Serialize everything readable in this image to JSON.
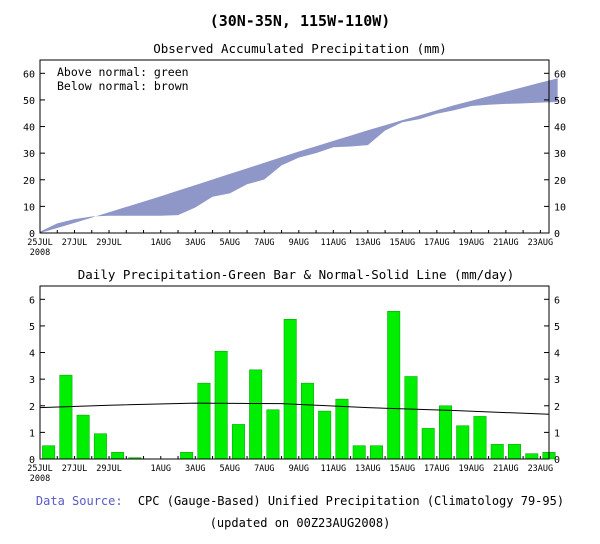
{
  "header": {
    "title": "(30N-35N, 115W-110W)"
  },
  "footer": {
    "source_label": "Data Source:",
    "source_text": "CPC (Gauge-Based) Unified Precipitation (Climatology 79-95)",
    "updated": "(updated on 00Z23AUG2008)"
  },
  "colors": {
    "accum_fill": "#8f97c9",
    "bar": "#00ee00",
    "bar_stroke": "#009900",
    "normal_line": "#000000",
    "source_label": "#5a5ac8"
  },
  "chart_data": [
    {
      "type": "area",
      "title": "Observed Accumulated Precipitation (mm)",
      "annotations": [
        "Above normal: green",
        "Below normal: brown"
      ],
      "x_labels": [
        "25JUL",
        "27JUL",
        "29JUL",
        "1AUG",
        "3AUG",
        "5AUG",
        "7AUG",
        "9AUG",
        "11AUG",
        "13AUG",
        "15AUG",
        "17AUG",
        "19AUG",
        "21AUG",
        "23AUG"
      ],
      "x_label_days": [
        0,
        2,
        4,
        7,
        9,
        11,
        13,
        15,
        17,
        19,
        21,
        23,
        25,
        27,
        29
      ],
      "year_label": "2008",
      "x_range": [
        0,
        29.5
      ],
      "ylim": [
        0,
        65
      ],
      "yticks": [
        0,
        10,
        20,
        30,
        40,
        50,
        60
      ],
      "legend": "top-left",
      "grid": false,
      "series": [
        {
          "name": "normal",
          "values": [
            0,
            1.9,
            3.8,
            5.8,
            7.8,
            9.8,
            11.8,
            13.8,
            15.9,
            18.0,
            20.1,
            22.2,
            24.3,
            26.4,
            28.5,
            30.6,
            32.6,
            34.6,
            36.6,
            38.6,
            40.5,
            42.4,
            44.2,
            46.1,
            48.0,
            49.7,
            51.4,
            53.1,
            54.8,
            56.5,
            58.1
          ]
        },
        {
          "name": "observed",
          "values": [
            0.5,
            3.6,
            5.2,
            6.2,
            6.5,
            6.5,
            6.5,
            6.5,
            6.7,
            9.6,
            13.6,
            14.9,
            18.3,
            20.1,
            25.4,
            28.3,
            30.0,
            32.2,
            32.5,
            33.0,
            38.5,
            41.6,
            42.8,
            44.8,
            46.1,
            47.7,
            48.2,
            48.5,
            48.7,
            49.0,
            49.2
          ]
        }
      ]
    },
    {
      "type": "bar",
      "title": "Daily Precipitation-Green Bar & Normal-Solid Line (mm/day)",
      "x_labels": [
        "25JUL",
        "27JUL",
        "29JUL",
        "1AUG",
        "3AUG",
        "5AUG",
        "7AUG",
        "9AUG",
        "11AUG",
        "13AUG",
        "15AUG",
        "17AUG",
        "19AUG",
        "21AUG",
        "23AUG"
      ],
      "x_label_days": [
        0,
        2,
        4,
        7,
        9,
        11,
        13,
        15,
        17,
        19,
        21,
        23,
        25,
        27,
        29
      ],
      "year_label": "2008",
      "x_range": [
        0,
        29.5
      ],
      "ylim": [
        0,
        6.5
      ],
      "yticks": [
        0,
        1,
        2,
        3,
        4,
        5,
        6
      ],
      "grid": false,
      "series": [
        {
          "name": "daily",
          "values": [
            0.5,
            3.15,
            1.65,
            0.95,
            0.25,
            0.05,
            0,
            0,
            0.25,
            2.85,
            4.05,
            1.3,
            3.35,
            1.85,
            5.25,
            2.85,
            1.8,
            2.25,
            0.5,
            0.5,
            5.55,
            3.1,
            1.15,
            2.0,
            1.25,
            1.6,
            0.55,
            0.55,
            0.2,
            0.25
          ]
        },
        {
          "name": "normal",
          "x": [
            0,
            4,
            9,
            14,
            19,
            24,
            29.5
          ],
          "values": [
            1.93,
            2.02,
            2.1,
            2.08,
            1.93,
            1.82,
            1.68
          ]
        }
      ]
    }
  ]
}
